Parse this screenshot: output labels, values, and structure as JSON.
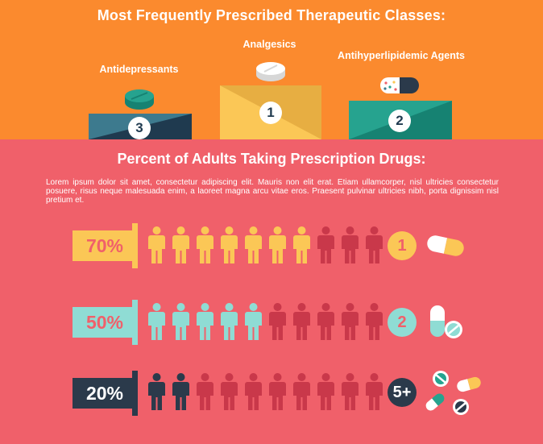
{
  "header": {
    "title": "Most Frequently Prescribed Therapeutic Classes:"
  },
  "podium": [
    {
      "label": "Antidepressants",
      "rank": "3",
      "color_a": "#3d7a8e",
      "color_b": "#1f3a4f",
      "icon": "round-tablet-icon"
    },
    {
      "label": "Analgesics",
      "rank": "1",
      "color_a": "#fbc756",
      "color_b": "#e7ae42",
      "icon": "pill-stack-icon"
    },
    {
      "label": "Antihyperlipidemic Agents",
      "rank": "2",
      "color_a": "#26a38f",
      "color_b": "#168272",
      "icon": "capsule-icon"
    }
  ],
  "section": {
    "title": "Percent of Adults Taking Prescription Drugs:",
    "body": "Lorem ipsum dolor sit amet, consectetur adipiscing elit. Mauris non elit erat. Etiam ullamcorper, nisl ultricies consectetur posuere, risus neque malesuada enim, a laoreet magna arcu vitae eros. Praesent pulvinar ultricies nibh, porta dignissim nisl pretium et."
  },
  "rows": [
    {
      "percent": "70%",
      "filled": 7,
      "total": 10,
      "count_label": "1",
      "color": "#fbc756",
      "text_color": "#f0606a",
      "icon": "capsule-icon"
    },
    {
      "percent": "50%",
      "filled": 5,
      "total": 10,
      "count_label": "2",
      "color": "#8fdcd4",
      "text_color": "#f0606a",
      "icon": "two-pills-icon"
    },
    {
      "percent": "20%",
      "filled": 2,
      "total": 10,
      "count_label": "5+",
      "color": "#2b3a4b",
      "text_color": "#ffffff",
      "icon": "many-pills-icon"
    }
  ],
  "colors": {
    "top_background": "#fb8a2e",
    "bottom_background": "#f0606a",
    "unfilled_person": "#c9384a"
  }
}
